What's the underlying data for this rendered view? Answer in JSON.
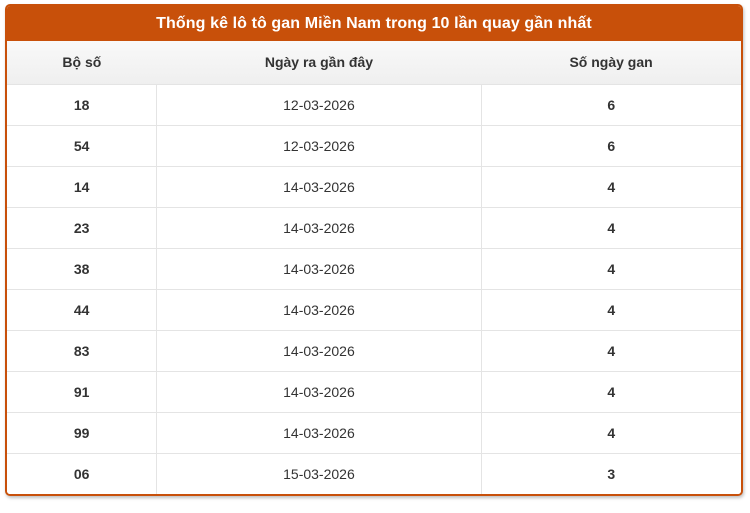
{
  "table": {
    "title": "Thống kê lô tô gan Miền Nam trong 10 lần quay gần nhất",
    "columns": [
      "Bộ số",
      "Ngày ra gần đây",
      "Số ngày gan"
    ],
    "rows": [
      {
        "number": "18",
        "date": "12-03-2026",
        "gan": "6"
      },
      {
        "number": "54",
        "date": "12-03-2026",
        "gan": "6"
      },
      {
        "number": "14",
        "date": "14-03-2026",
        "gan": "4"
      },
      {
        "number": "23",
        "date": "14-03-2026",
        "gan": "4"
      },
      {
        "number": "38",
        "date": "14-03-2026",
        "gan": "4"
      },
      {
        "number": "44",
        "date": "14-03-2026",
        "gan": "4"
      },
      {
        "number": "83",
        "date": "14-03-2026",
        "gan": "4"
      },
      {
        "number": "91",
        "date": "14-03-2026",
        "gan": "4"
      },
      {
        "number": "99",
        "date": "14-03-2026",
        "gan": "4"
      },
      {
        "number": "06",
        "date": "15-03-2026",
        "gan": "3"
      }
    ],
    "colors": {
      "accent_orange": "#c8500a",
      "gan_number_text": "#cc5500",
      "header_row_bg": "#f4f4f4",
      "row_border": "#e4e4e4",
      "body_text": "#333333",
      "title_text": "#ffffff"
    }
  }
}
